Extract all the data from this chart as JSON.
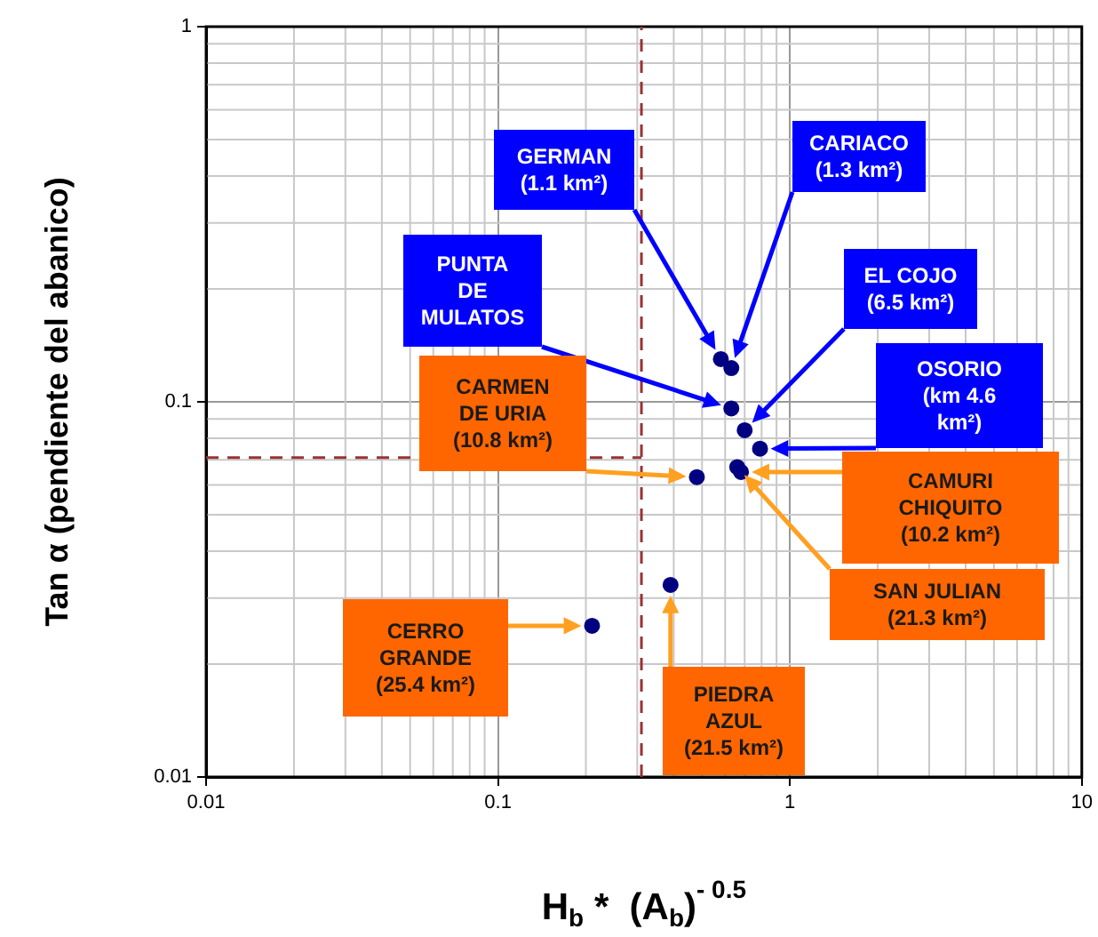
{
  "chart_data": {
    "type": "scatter",
    "xlabel": "H$_{b}$ *  (A$_{b}$)$^{- 0.5}$",
    "ylabel": "Tan α (pendiente del abanico)",
    "series": [
      {
        "color": "#000080",
        "x": [
          0.58,
          0.63,
          0.63,
          0.7,
          0.79,
          0.48,
          0.66,
          0.68,
          0.21,
          0.39
        ],
        "values": [
          0.13,
          0.123,
          0.096,
          0.084,
          0.075,
          0.063,
          0.067,
          0.065,
          0.0253,
          0.0325
        ]
      }
    ],
    "marker": "circle",
    "log": "xy",
    "grid": true,
    "legend": false,
    "xlim": [
      0.01,
      10
    ],
    "xticks": [
      0.01,
      0.1,
      1,
      10
    ],
    "ylim": [
      0.01,
      1
    ],
    "yticks": [
      0.01,
      0.1,
      1
    ],
    "ref_lines": [
      {
        "axis": "x",
        "value": 0.31,
        "color": "#993333",
        "line_style": "dashed"
      },
      {
        "axis": "y",
        "value": 0.071,
        "color": "#993333",
        "line_style": "dashed"
      }
    ],
    "annotations": [
      "GERMAN\n(1.1 km²)",
      "CARIACO\n(1.3 km²)",
      "PUNTA\nDE\nMULATOS",
      "EL COJO\n(6.5 km²)",
      "OSORIO\n(km 4.6\nkm²)",
      "CARMEN\nDE URIA\n(10.8 km²)",
      "SAN JULIAN\n(21.3 km²)",
      "CAMURI\nCHIQUITO\n(10.2 km²)",
      "CERRO\nGRANDE\n(25.4 km²)",
      "PIEDRA\nAZUL\n(21.5 km²)"
    ]
  }
}
